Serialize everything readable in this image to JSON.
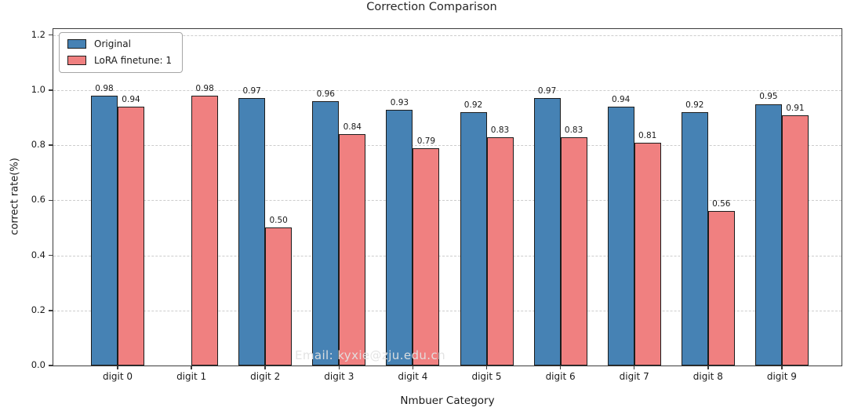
{
  "watermark": "Email: kyxie@zju.edu.cn",
  "chart_data": {
    "type": "bar",
    "title": "Correction Comparison",
    "xlabel": "Nmbuer Category",
    "ylabel": "correct rate(%)",
    "categories": [
      "digit 0",
      "digit 1",
      "digit 2",
      "digit 3",
      "digit 4",
      "digit 5",
      "digit 6",
      "digit 7",
      "digit 8",
      "digit 9"
    ],
    "series": [
      {
        "name": "Original",
        "color": "#4682B4",
        "values": [
          0.98,
          null,
          0.97,
          0.96,
          0.93,
          0.92,
          0.97,
          0.94,
          0.92,
          0.95
        ]
      },
      {
        "name": "LoRA finetune: 1",
        "color": "#F08080",
        "values": [
          0.94,
          0.98,
          0.5,
          0.84,
          0.79,
          0.83,
          0.83,
          0.81,
          0.56,
          0.91
        ]
      }
    ],
    "ylim": [
      0,
      1.222
    ],
    "yticks": [
      0.0,
      0.2,
      0.4,
      0.6,
      0.8,
      1.0,
      1.2
    ],
    "grid": true,
    "grid_style": "dashed",
    "legend_position": "upper left",
    "bar_edge_color": "#1c1c1c"
  }
}
